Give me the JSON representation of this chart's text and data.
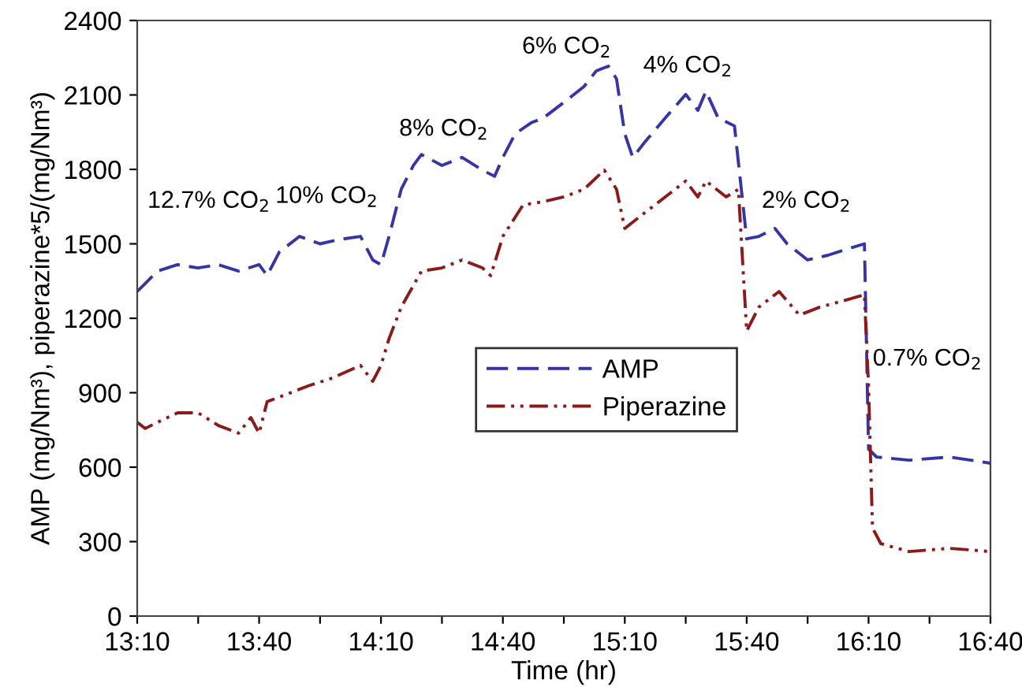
{
  "chart_data": {
    "type": "line",
    "xlabel": "Time (hr)",
    "ylabel": "AMP (mg/Nm³), piperazine*5/(mg/Nm³)",
    "xlim": [
      13.167,
      16.667
    ],
    "ylim": [
      0,
      2400
    ],
    "xticks": [
      {
        "value": 13.167,
        "label": "13:10"
      },
      {
        "value": 13.417,
        "label": null
      },
      {
        "value": 13.667,
        "label": "13:40"
      },
      {
        "value": 13.917,
        "label": null
      },
      {
        "value": 14.167,
        "label": "14:10"
      },
      {
        "value": 14.417,
        "label": null
      },
      {
        "value": 14.667,
        "label": "14:40"
      },
      {
        "value": 14.917,
        "label": null
      },
      {
        "value": 15.167,
        "label": "15:10"
      },
      {
        "value": 15.417,
        "label": null
      },
      {
        "value": 15.667,
        "label": "15:40"
      },
      {
        "value": 15.917,
        "label": null
      },
      {
        "value": 16.167,
        "label": "16:10"
      },
      {
        "value": 16.417,
        "label": null
      },
      {
        "value": 16.667,
        "label": "16:40"
      }
    ],
    "yticks": [
      0,
      300,
      600,
      900,
      1200,
      1500,
      1800,
      2100,
      2400
    ],
    "grid": false,
    "legend": "center",
    "marker": "none",
    "series": [
      {
        "name": "AMP",
        "color": "#3535a8",
        "line_style": "dashed",
        "x": [
          13.167,
          13.2,
          13.25,
          13.333,
          13.417,
          13.5,
          13.583,
          13.667,
          13.7,
          13.75,
          13.833,
          13.917,
          14,
          14.083,
          14.133,
          14.167,
          14.2,
          14.25,
          14.3,
          14.333,
          14.417,
          14.5,
          14.583,
          14.633,
          14.667,
          14.717,
          14.783,
          14.833,
          14.917,
          15,
          15.05,
          15.1,
          15.133,
          15.167,
          15.2,
          15.25,
          15.333,
          15.417,
          15.467,
          15.5,
          15.55,
          15.617,
          15.667,
          15.717,
          15.783,
          15.833,
          15.917,
          16,
          16.083,
          16.15,
          16.167,
          16.2,
          16.333,
          16.5,
          16.667
        ],
        "values": [
          1308,
          1340,
          1390,
          1416,
          1403,
          1416,
          1390,
          1416,
          1372,
          1467,
          1530,
          1500,
          1518,
          1530,
          1435,
          1416,
          1530,
          1720,
          1816,
          1860,
          1816,
          1848,
          1797,
          1772,
          1848,
          1943,
          1988,
          2007,
          2070,
          2134,
          2197,
          2216,
          2165,
          1943,
          1848,
          1911,
          2007,
          2102,
          2038,
          2115,
          2007,
          1975,
          1520,
          1530,
          1562,
          1500,
          1435,
          1454,
          1480,
          1500,
          673,
          641,
          628,
          641,
          616
        ]
      },
      {
        "name": "Piperazine",
        "color": "#8b1a1a",
        "line_style": "dashdotdot",
        "x": [
          13.167,
          13.2,
          13.25,
          13.333,
          13.417,
          13.5,
          13.583,
          13.633,
          13.667,
          13.7,
          13.783,
          13.867,
          13.967,
          14.083,
          14.133,
          14.167,
          14.2,
          14.25,
          14.333,
          14.417,
          14.5,
          14.583,
          14.617,
          14.667,
          14.75,
          14.833,
          14.917,
          15,
          15.083,
          15.133,
          15.167,
          15.25,
          15.333,
          15.417,
          15.467,
          15.5,
          15.583,
          15.633,
          15.667,
          15.717,
          15.8,
          15.883,
          15.967,
          16.083,
          16.15,
          16.167,
          16.183,
          16.217,
          16.333,
          16.5,
          16.667
        ],
        "values": [
          781,
          756,
          781,
          819,
          819,
          768,
          737,
          800,
          737,
          864,
          895,
          927,
          959,
          1010,
          946,
          1010,
          1118,
          1245,
          1390,
          1403,
          1435,
          1403,
          1372,
          1530,
          1657,
          1670,
          1689,
          1720,
          1797,
          1720,
          1562,
          1626,
          1689,
          1753,
          1689,
          1753,
          1689,
          1720,
          1149,
          1245,
          1308,
          1213,
          1245,
          1276,
          1295,
          927,
          356,
          292,
          260,
          273,
          260
        ]
      }
    ],
    "annotations": [
      "12.7% CO$_{2}$",
      "10% CO$_{2}$",
      "8% CO$_{2}$",
      "6% CO$_{2}$",
      "4% CO$_{2}$",
      "2% CO$_{2}$",
      "0.7% CO$_{2}$"
    ]
  }
}
